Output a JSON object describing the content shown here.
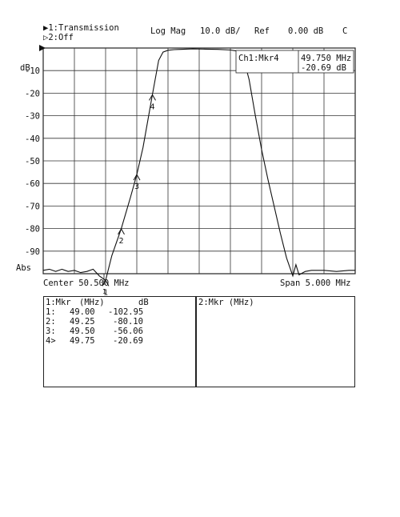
{
  "header": {
    "line1": "▶1:Transmission",
    "line2": "▷2:Off",
    "format": "Log Mag",
    "scale": "10.0 dB/",
    "ref_label": "Ref",
    "ref_value": "0.00 dB",
    "coupling": "C"
  },
  "marker_readout": {
    "label": "Ch1:Mkr4",
    "freq": "49.750 MHz",
    "value": "-20.69 dB"
  },
  "axis": {
    "unit": "dB",
    "abs_label": "Abs",
    "center": "Center 50.500 MHz",
    "span": "Span 5.000 MHz",
    "channel_tick": "1"
  },
  "chart_data": {
    "type": "line",
    "xlim": [
      48.0,
      53.0
    ],
    "ylim": [
      -100,
      0
    ],
    "yticks": [
      "-10",
      "-20",
      "-30",
      "-40",
      "-50",
      "-60",
      "-70",
      "-80",
      "-90"
    ],
    "x_divisions": 10,
    "grid": true,
    "series": [
      {
        "x": [
          48.0,
          48.1,
          48.2,
          48.3,
          48.35,
          48.4,
          48.5,
          48.6,
          48.7,
          48.8,
          48.9,
          49.0,
          49.1,
          49.25,
          49.4,
          49.5,
          49.6,
          49.75,
          49.85,
          49.92,
          50.0,
          50.1,
          50.2,
          50.4,
          50.6,
          50.8,
          51.0,
          51.1,
          51.2,
          51.3,
          51.4,
          51.5,
          51.6,
          51.7,
          51.8,
          51.9,
          52.0,
          52.05,
          52.1,
          52.2,
          52.3,
          52.5,
          52.7,
          52.9,
          53.0
        ],
        "y": [
          -98.5,
          -98.0,
          -99.0,
          -98.0,
          -98.5,
          -99.0,
          -98.5,
          -99.5,
          -99.0,
          -98.0,
          -101.0,
          -102.95,
          -92.0,
          -80.1,
          -66.0,
          -56.06,
          -44.0,
          -20.69,
          -5.5,
          -1.8,
          -1.0,
          -0.7,
          -0.6,
          -0.4,
          -0.5,
          -0.6,
          -0.9,
          -1.3,
          -3.5,
          -14.0,
          -30.0,
          -45.0,
          -58.0,
          -70.0,
          -82.0,
          -93.0,
          -101.0,
          -96.0,
          -100.5,
          -99.0,
          -98.5,
          -98.5,
          -99.0,
          -98.5,
          -98.5
        ]
      }
    ],
    "markers": [
      {
        "id": "1",
        "x": 49.0,
        "y": -102.95
      },
      {
        "id": "2",
        "x": 49.25,
        "y": -80.1
      },
      {
        "id": "3",
        "x": 49.5,
        "y": -56.06
      },
      {
        "id": "4",
        "x": 49.75,
        "y": -20.69
      }
    ]
  },
  "tables": {
    "left_header": [
      "1:Mkr",
      "(MHz)",
      "dB"
    ],
    "rows": [
      {
        "id": "1:",
        "freq": "49.00",
        "db": "-102.95"
      },
      {
        "id": "2:",
        "freq": "49.25",
        "db": "-80.10"
      },
      {
        "id": "3:",
        "freq": "49.50",
        "db": "-56.06"
      },
      {
        "id": "4>",
        "freq": "49.75",
        "db": "-20.69"
      }
    ],
    "right_header": "2:Mkr (MHz)"
  }
}
